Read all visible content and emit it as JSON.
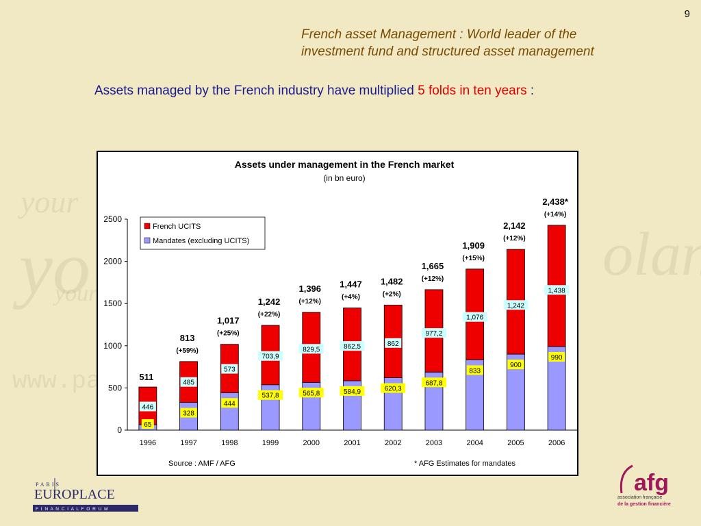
{
  "page": {
    "slide_number": "9",
    "headline_line1": "French asset Management : World leader of the",
    "headline_line2": "investment fund and structured asset management",
    "intro_text": "Assets managed by the French industry have multiplied",
    "intro_highlight": "5 folds in ten years",
    "intro_suffix": " :",
    "background_words": [
      "your",
      "yo",
      "your",
      "www.pa",
      "olan"
    ]
  },
  "logos": {
    "europlace_small": "PARIS",
    "europlace_main": "EUROPLACE",
    "europlace_sub": "F I N A N C I A L   F O R U M",
    "afg_main": "afg",
    "afg_sub1": "association française",
    "afg_sub2": "de la gestion financière"
  },
  "colors": {
    "ucits": "#ee0000",
    "mandates": "#9999ff",
    "label_yellow": "#ffff00",
    "label_cyan": "#ccffff",
    "headline": "#7a4a00",
    "intro": "#1a1a8c",
    "highlight": "#e00000"
  },
  "chart_data": {
    "type": "bar",
    "stacked": true,
    "title": "Assets under management in the French market",
    "subtitle": "(in bn euro)",
    "categories": [
      "1996",
      "1997",
      "1998",
      "1999",
      "2000",
      "2001",
      "2002",
      "2003",
      "2004",
      "2005",
      "2006"
    ],
    "series": [
      {
        "name": "Mandates (excluding UCITS)",
        "color": "#9999ff",
        "values": [
          65,
          328,
          444,
          537.8,
          565.8,
          584.9,
          620.3,
          687.8,
          833,
          900,
          990
        ],
        "labels": [
          "65",
          "328",
          "444",
          "537,8",
          "565,8",
          "584,9",
          "620,3",
          "687,8",
          "833",
          "900",
          "990"
        ]
      },
      {
        "name": "French UCITS",
        "color": "#ee0000",
        "values": [
          446,
          485,
          573,
          703.9,
          829.5,
          862.5,
          862,
          977.2,
          1076,
          1242,
          1438
        ],
        "labels": [
          "446",
          "485",
          "573",
          "703,9",
          "829,5",
          "862,5",
          "862",
          "977,2",
          "1,076",
          "1,242",
          "1,438"
        ]
      }
    ],
    "totals": [
      "511",
      "813",
      "1,017",
      "1,242",
      "1,396",
      "1,447",
      "1,482",
      "1,665",
      "1,909",
      "2,142",
      "2,438*"
    ],
    "growth": [
      "",
      "(+59%)",
      "(+25%)",
      "(+22%)",
      "(+12%)",
      "(+4%)",
      "(+2%)",
      "(+12%)",
      "(+15%)",
      "(+12%)",
      "(+14%)"
    ],
    "yticks": [
      0,
      500,
      1000,
      1500,
      2000,
      2500
    ],
    "ylim": [
      0,
      2500
    ],
    "legend_position": "top-left",
    "legend": [
      "French UCITS",
      "Mandates (excluding UCITS)"
    ],
    "source": "Source : AMF / AFG",
    "footnote": "* AFG Estimates for mandates",
    "grid": false
  }
}
